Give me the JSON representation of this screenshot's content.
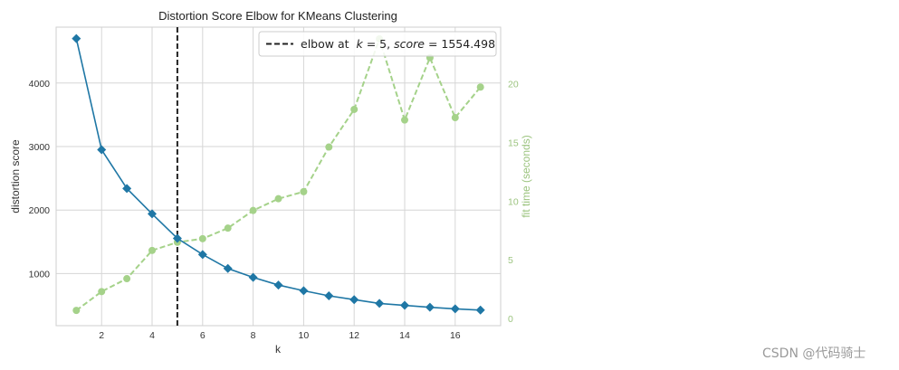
{
  "chart_data": {
    "type": "line",
    "title": "Distortion Score Elbow for KMeans Clustering",
    "xlabel": "k",
    "ylabel": "distortion score",
    "y2label": "fit time (seconds)",
    "xlim": [
      0.2,
      17.8
    ],
    "ylim": [
      180,
      4880
    ],
    "y2lim": [
      -0.6,
      24.8
    ],
    "xticks": [
      2,
      4,
      6,
      8,
      10,
      12,
      14,
      16
    ],
    "yticks": [
      1000,
      2000,
      3000,
      4000
    ],
    "y2ticks": [
      0,
      5,
      10,
      15,
      20
    ],
    "grid": true,
    "legend_position": "top-right",
    "elbow": {
      "k": 5,
      "score": 1554.498,
      "label": "elbow at $k=5$, $score=1554.498$"
    },
    "series": [
      {
        "axis": "left",
        "color": "#1f77a5",
        "marker": "diamond",
        "x": [
          1,
          2,
          3,
          4,
          5,
          6,
          7,
          8,
          9,
          10,
          11,
          12,
          13,
          14,
          15,
          16,
          17
        ],
        "values": [
          4700,
          2950,
          2340,
          1940,
          1554.498,
          1300,
          1080,
          940,
          820,
          730,
          650,
          590,
          530,
          500,
          470,
          445,
          425
        ]
      },
      {
        "axis": "right",
        "color": "#a5d28a",
        "marker": "circle",
        "dashed": true,
        "x": [
          1,
          2,
          3,
          4,
          5,
          6,
          7,
          8,
          9,
          10,
          11,
          12,
          13,
          14,
          15,
          16,
          17
        ],
        "values": [
          0.7,
          2.3,
          3.4,
          5.8,
          6.5,
          6.8,
          7.7,
          9.2,
          10.2,
          10.8,
          14.6,
          17.8,
          23.8,
          16.9,
          22.2,
          17.1,
          19.7
        ]
      }
    ]
  },
  "colors": {
    "grid": "#d6d6d6",
    "frame": "#cfcfcf",
    "right_axis": "#9cc47f",
    "elbow_line": "#222222"
  },
  "legend": {
    "elbow_prefix": "elbow at",
    "k_var": "k",
    "k_eq": " = 5, ",
    "score_var": "score",
    "score_eq": " = 1554.498"
  },
  "watermark": "CSDN @代码骑士"
}
